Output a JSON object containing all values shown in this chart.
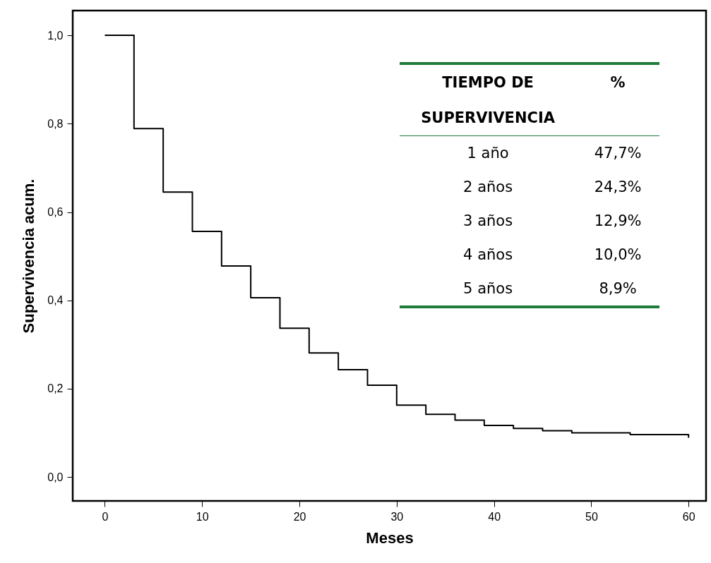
{
  "chart_data": {
    "type": "step",
    "xlabel": "Meses",
    "ylabel": "Supervivencia acum.",
    "x": [
      0,
      3,
      6,
      9,
      12,
      15,
      18,
      21,
      24,
      27,
      30,
      33,
      36,
      39,
      42,
      45,
      48,
      54,
      60
    ],
    "series": [
      {
        "color": "#000000",
        "values": [
          1.0,
          0.789,
          0.645,
          0.556,
          0.478,
          0.406,
          0.337,
          0.281,
          0.243,
          0.208,
          0.163,
          0.142,
          0.129,
          0.117,
          0.11,
          0.105,
          0.1,
          0.096,
          0.089
        ]
      }
    ],
    "xlim": [
      -3.3,
      61.8
    ],
    "xticks": [
      0,
      10,
      20,
      30,
      40,
      50,
      60
    ],
    "ylim": [
      -0.054,
      1.056
    ],
    "yticks": [
      {
        "value": 0,
        "label": "0,0"
      },
      {
        "value": 0.2,
        "label": "0,2"
      },
      {
        "value": 0.4,
        "label": "0,4"
      },
      {
        "value": 0.6,
        "label": "0,6"
      },
      {
        "value": 0.8,
        "label": "0,8"
      },
      {
        "value": 1,
        "label": "1,0"
      }
    ],
    "grid": false,
    "annotations": [
      "TIEMPO DE SUPERVIVENCIA",
      "%",
      "1 año",
      "47,7%",
      "2 años",
      "24,3%",
      "3 años",
      "12,9%",
      "4 años",
      "10,0%",
      "5 años",
      "8,9%"
    ]
  }
}
